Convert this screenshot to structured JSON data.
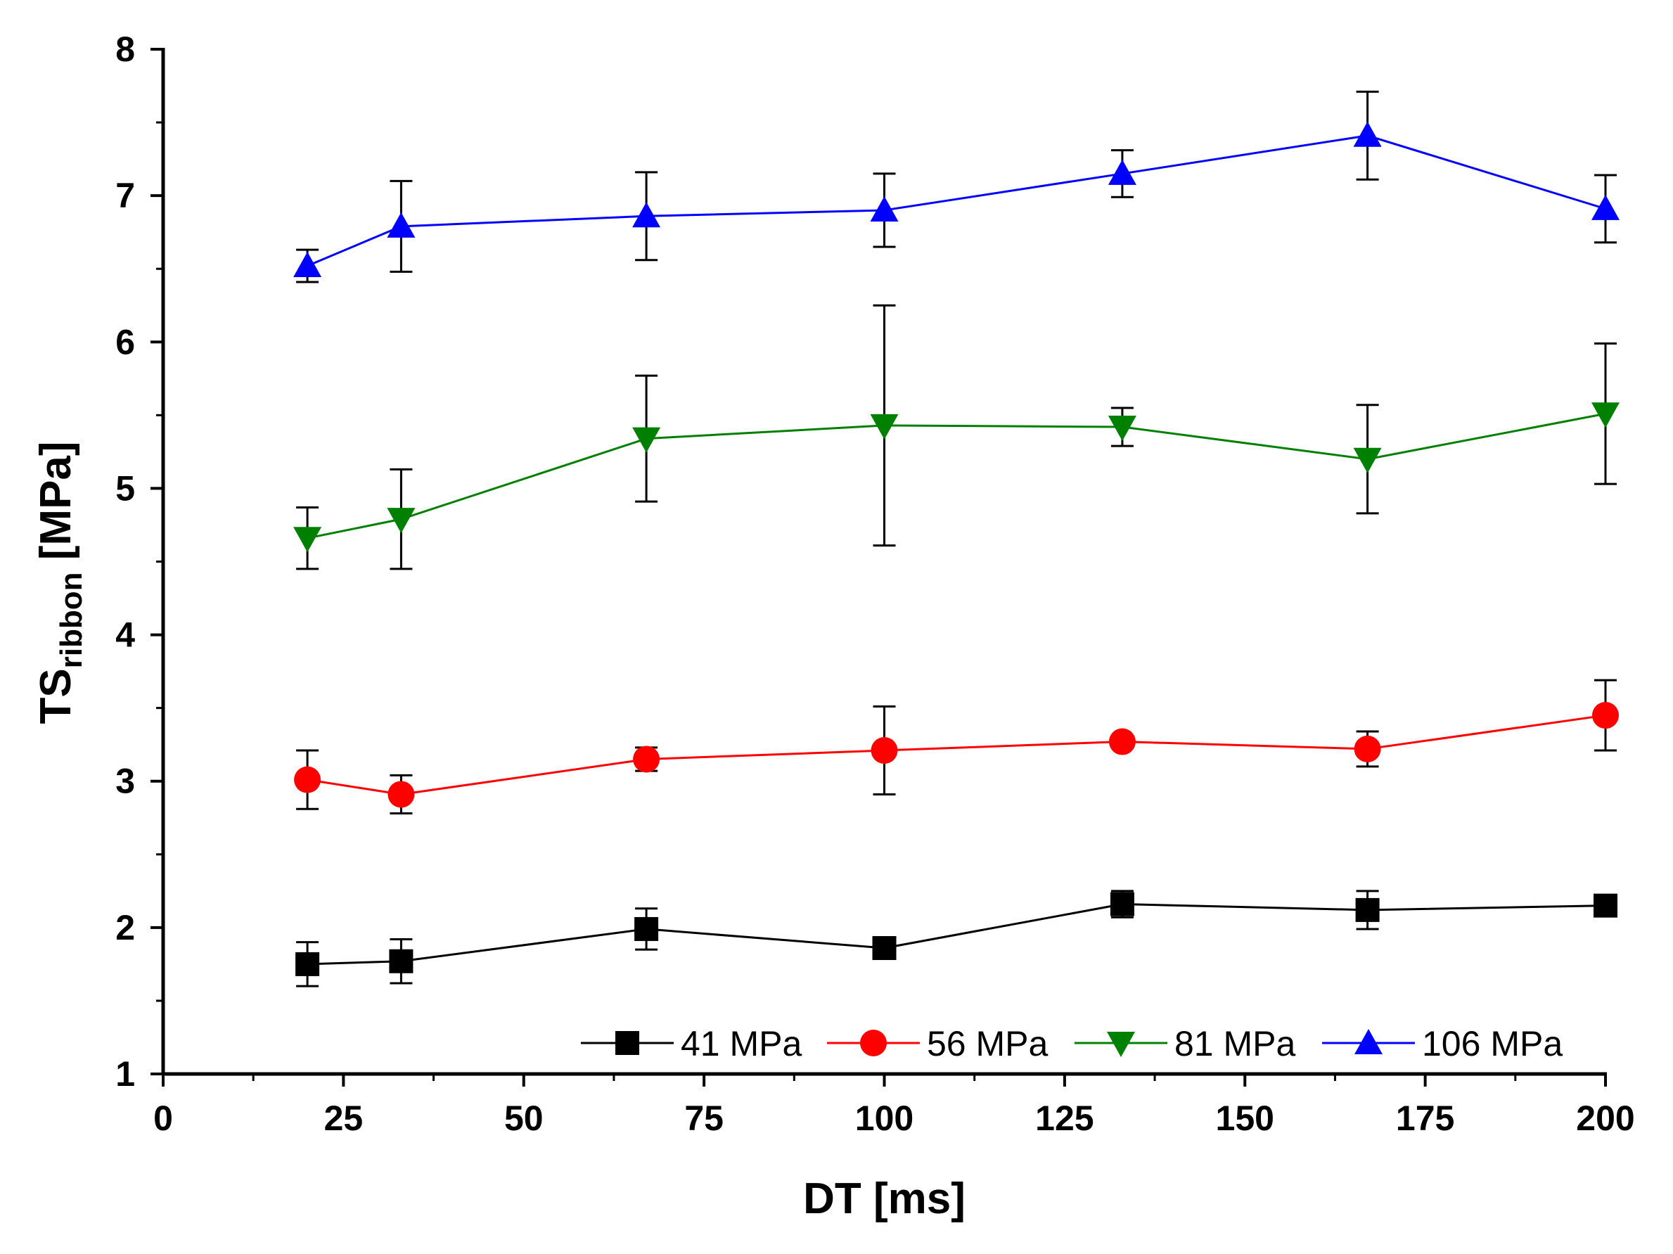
{
  "chart_data": {
    "type": "line",
    "xlabel": "DT [ms]",
    "ylabel": {
      "main": "TS",
      "subscript": "ribbon",
      "unit": " [MPa]"
    },
    "xlim": [
      0,
      200
    ],
    "ylim": [
      1,
      8
    ],
    "xticks": [
      "0",
      "25",
      "50",
      "75",
      "100",
      "125",
      "150",
      "175",
      "200"
    ],
    "yticks": [
      "1",
      "2",
      "3",
      "4",
      "5",
      "6",
      "7",
      "8"
    ],
    "grid": false,
    "legend_position": "bottom-right",
    "x": [
      20,
      33,
      67,
      100,
      133,
      167,
      200
    ],
    "series": [
      {
        "name": "41 MPa",
        "color": "#000000",
        "marker": "square",
        "values": [
          1.75,
          1.77,
          1.99,
          1.86,
          2.16,
          2.12,
          2.15
        ],
        "errors": [
          0.15,
          0.15,
          0.14,
          0.05,
          0.09,
          0.13,
          0.06
        ]
      },
      {
        "name": "56 MPa",
        "color": "#ff0000",
        "marker": "circle",
        "values": [
          3.01,
          2.91,
          3.15,
          3.21,
          3.27,
          3.22,
          3.45
        ],
        "errors": [
          0.2,
          0.13,
          0.08,
          0.3,
          0.0,
          0.12,
          0.24
        ]
      },
      {
        "name": "81 MPa",
        "color": "#008000",
        "marker": "triangle-down",
        "values": [
          4.66,
          4.79,
          5.34,
          5.43,
          5.42,
          5.2,
          5.51
        ],
        "errors": [
          0.21,
          0.34,
          0.43,
          0.82,
          0.13,
          0.37,
          0.48
        ]
      },
      {
        "name": "106 MPa",
        "color": "#0000ff",
        "marker": "triangle-up",
        "values": [
          6.52,
          6.79,
          6.86,
          6.9,
          7.15,
          7.41,
          6.91
        ],
        "errors": [
          0.11,
          0.31,
          0.3,
          0.25,
          0.16,
          0.3,
          0.23
        ]
      }
    ]
  }
}
